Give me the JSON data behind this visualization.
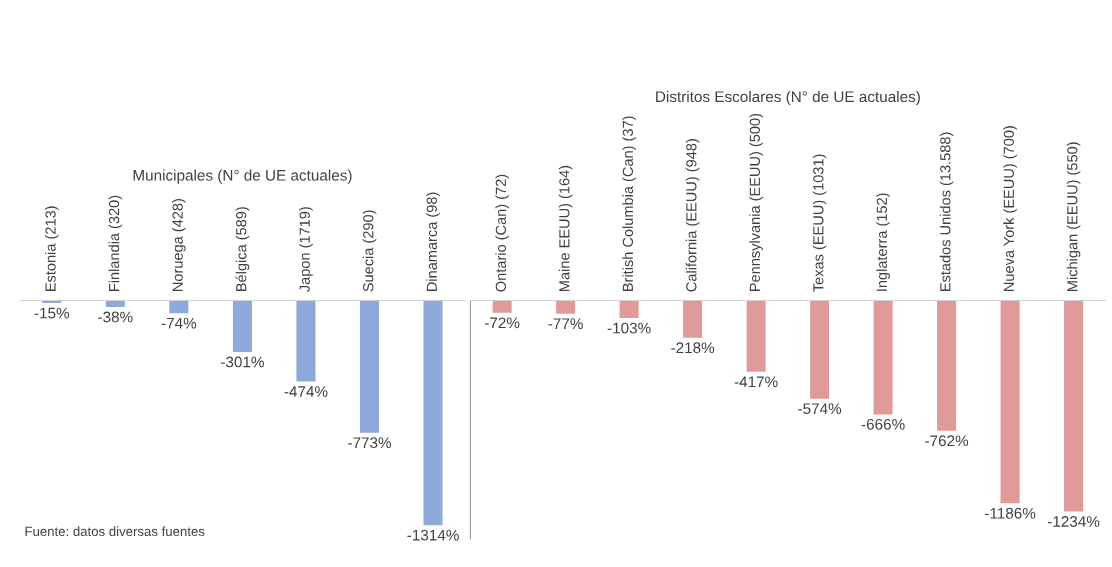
{
  "chart_data": [
    {
      "type": "bar",
      "title": "Municipales (N° de UE actuales)",
      "categories": [
        "Estonia (213)",
        "Finlandia (320)",
        "Noruega (428)",
        "Bélgica (589)",
        "Japon (1719)",
        "Suecia (290)",
        "Dinamarca (98)"
      ],
      "values": [
        -15,
        -38,
        -74,
        -301,
        -474,
        -773,
        -1314
      ],
      "value_labels": [
        "-15%",
        "-38%",
        "-74%",
        "-301%",
        "-474%",
        "-773%",
        "-1314%"
      ],
      "color": "#8eaadb",
      "annotations": [
        "Fuente: datos diversas fuentes"
      ]
    },
    {
      "type": "bar",
      "title": "Distritos Escolares (N° de UE actuales)",
      "categories": [
        "Ontario (Can) (72)",
        "Maine EEUU) (164)",
        "British Columbia (Can) (37)",
        "California (EEUU) (948)",
        "Pennsylvania (EEUU) (500)",
        "Texas (EEUU) (1031)",
        "Inglaterra (152)",
        "Estados Unidos (13.588)",
        "Nueva York (EEUU) (700)",
        "Michigan (EEUU) (550)"
      ],
      "values": [
        -72,
        -77,
        -103,
        -218,
        -417,
        -574,
        -666,
        -762,
        -1186,
        -1234
      ],
      "value_labels": [
        "-72%",
        "-77%",
        "-103%",
        "-218%",
        "-417%",
        "-574%",
        "-666%",
        "-762%",
        "-1186%",
        "-1234%"
      ],
      "color": "#e09a9a"
    }
  ]
}
